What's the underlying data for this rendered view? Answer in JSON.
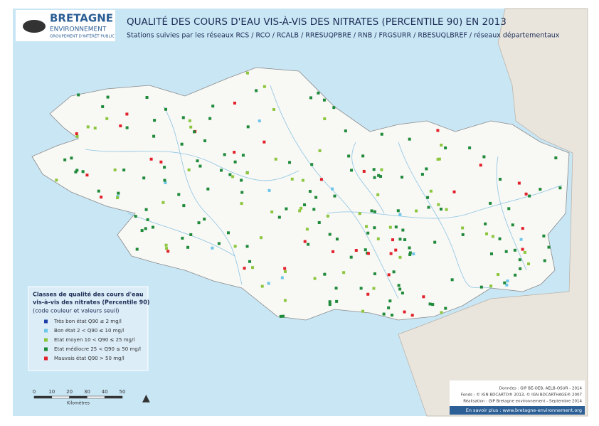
{
  "logo": {
    "name": "BRETAGNE",
    "line2": "ENVIRONNEMENT",
    "line3": "GROUPEMENT D'INTÉRÊT PUBLIC"
  },
  "header": {
    "title": "QUALITÉ DES COURS D'EAU VIS-À-VIS DES NITRATES (PERCENTILE 90) EN 2013",
    "subtitle": "Stations suivies par les réseaux RCS / RCO / RCALB / RRESUQPBRE / RNB / FRGSURR / RBESUQLBREF / réseaux départementaux"
  },
  "legend": {
    "title_line1": "Classes de qualité des cours d'eau",
    "title_line2": "vis-à-vis des nitrates (Percentile 90)",
    "note": "(code couleur et valeurs seuil)",
    "items": [
      {
        "label": "Très bon état  Q90 ≤ 2 mg/l",
        "color": "#1f3fa8"
      },
      {
        "label": "Bon état  2 < Q90 ≤ 10 mg/l",
        "color": "#6ec6ea"
      },
      {
        "label": "Etat moyen  10 < Q90 ≤ 25 mg/l",
        "color": "#8cc63f"
      },
      {
        "label": "Etat médiocre  25 < Q90 ≤ 50 mg/l",
        "color": "#1f8a3a"
      },
      {
        "label": "Mauvais état  Q90 > 50 mg/l",
        "color": "#e2202a"
      }
    ]
  },
  "scale": {
    "ticks": [
      0,
      10,
      20,
      30,
      40,
      50
    ],
    "unit": "Kilomètres"
  },
  "credits": {
    "data": "Données : GIP BE-OEB, AELB-OSUR - 2014",
    "base": "Fonds : © IGN BDCARTO® 2013, © IGN BDCARTHAGE® 2007",
    "made": "Réalisation : GIP Bretagne environnement - Septembre 2014",
    "more": "En savoir plus : www.bretagne-environnement.org"
  }
}
